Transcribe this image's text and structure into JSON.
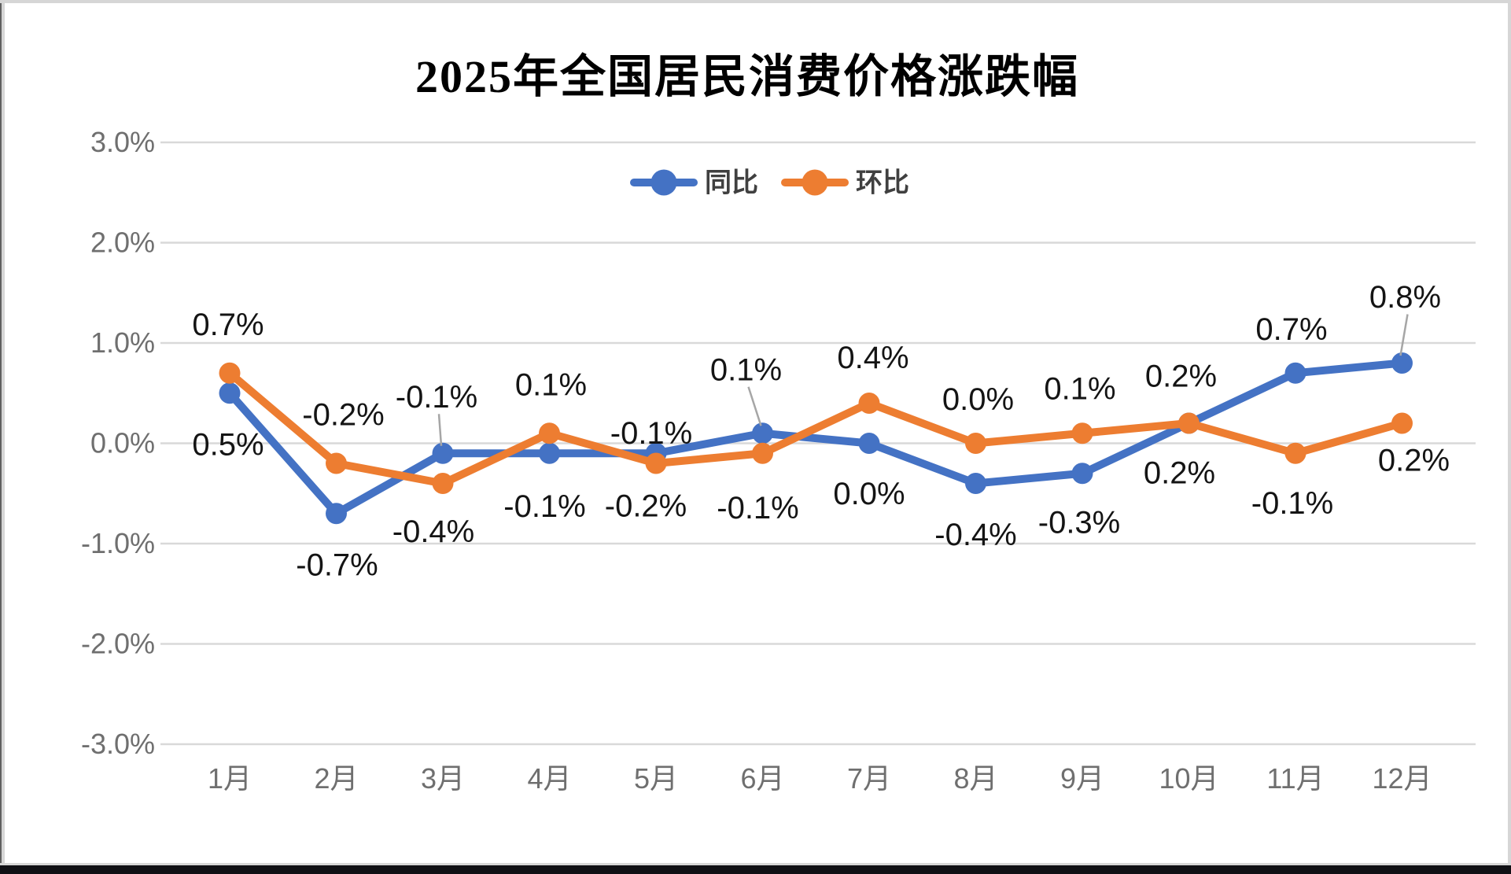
{
  "chart_data": {
    "type": "line",
    "title": "2025年全国居民消费价格涨跌幅",
    "categories": [
      "1月",
      "2月",
      "3月",
      "4月",
      "5月",
      "6月",
      "7月",
      "8月",
      "9月",
      "10月",
      "11月",
      "12月"
    ],
    "series": [
      {
        "name": "同比",
        "color": "#4472C4",
        "values": [
          0.5,
          -0.7,
          -0.1,
          -0.1,
          -0.1,
          0.1,
          0.0,
          -0.4,
          -0.3,
          0.2,
          0.7,
          0.8
        ],
        "data_labels": [
          {
            "text": "0.5%",
            "side": "below",
            "dx": -2,
            "dy": 65
          },
          {
            "text": "-0.7%",
            "side": "below",
            "dx": 1,
            "dy": 65
          },
          {
            "text": "-0.1%",
            "side": "above",
            "dx": -8,
            "dy": -72,
            "leader": true
          },
          {
            "text": "-0.1%",
            "side": "below",
            "dx": -6,
            "dy": 67
          },
          {
            "text": "-0.1%",
            "side": "above",
            "dx": -6,
            "dy": -26
          },
          {
            "text": "0.1%",
            "side": "above",
            "dx": -21,
            "dy": -81,
            "leader": true
          },
          {
            "text": "0.0%",
            "side": "below",
            "dx": 0,
            "dy": 64
          },
          {
            "text": "-0.4%",
            "side": "below",
            "dx": 0,
            "dy": 65
          },
          {
            "text": "-0.3%",
            "side": "below",
            "dx": -4,
            "dy": 62
          },
          {
            "text": "0.2%",
            "side": "above",
            "dx": -10,
            "dy": -60
          },
          {
            "text": "0.7%",
            "side": "above",
            "dx": -5,
            "dy": -56
          },
          {
            "text": "0.8%",
            "side": "above",
            "dx": 4,
            "dy": -84,
            "leader": true
          }
        ]
      },
      {
        "name": "环比",
        "color": "#ED7D31",
        "values": [
          0.7,
          -0.2,
          -0.4,
          0.1,
          -0.2,
          -0.1,
          0.4,
          0.0,
          0.1,
          0.2,
          -0.1,
          0.2
        ],
        "data_labels": [
          {
            "text": "0.7%",
            "side": "above",
            "dx": -2,
            "dy": -62
          },
          {
            "text": "-0.2%",
            "side": "above",
            "dx": 9,
            "dy": -62
          },
          {
            "text": "-0.4%",
            "side": "below",
            "dx": -12,
            "dy": 61
          },
          {
            "text": "0.1%",
            "side": "above",
            "dx": 2,
            "dy": -62
          },
          {
            "text": "-0.2%",
            "side": "below",
            "dx": -13,
            "dy": 54
          },
          {
            "text": "-0.1%",
            "side": "below",
            "dx": -6,
            "dy": 69
          },
          {
            "text": "0.4%",
            "side": "above",
            "dx": 5,
            "dy": -58
          },
          {
            "text": "0.0%",
            "side": "above",
            "dx": 3,
            "dy": -56
          },
          {
            "text": "0.1%",
            "side": "above",
            "dx": -3,
            "dy": -57
          },
          {
            "text": "0.2%",
            "side": "below",
            "dx": -12,
            "dy": 63
          },
          {
            "text": "-0.1%",
            "side": "below",
            "dx": -4,
            "dy": 63
          },
          {
            "text": "0.2%",
            "side": "below",
            "dx": 15,
            "dy": 47
          }
        ]
      }
    ],
    "y_ticks": [
      {
        "label": "3.0%",
        "value": 3
      },
      {
        "label": "2.0%",
        "value": 2
      },
      {
        "label": "1.0%",
        "value": 1
      },
      {
        "label": "0.0%",
        "value": 0
      },
      {
        "label": "-1.0%",
        "value": -1
      },
      {
        "label": "-2.0%",
        "value": -2
      },
      {
        "label": "-3.0%",
        "value": -3
      }
    ],
    "ylim": [
      -3,
      3
    ],
    "grid": true,
    "legend_position": "top-center",
    "legend": [
      "同比",
      "环比"
    ]
  },
  "colors": {
    "gridline": "#D9D9D9",
    "axis_text": "#6f6f6f",
    "data_label_text": "#141414",
    "legend_text": "#404040",
    "leader_line": "#A6A6A6",
    "series_tongbi": "#4472C4",
    "series_huanbi": "#ED7D31",
    "frame_border": "#d6d6d6",
    "bottom_bar": "#101014"
  }
}
